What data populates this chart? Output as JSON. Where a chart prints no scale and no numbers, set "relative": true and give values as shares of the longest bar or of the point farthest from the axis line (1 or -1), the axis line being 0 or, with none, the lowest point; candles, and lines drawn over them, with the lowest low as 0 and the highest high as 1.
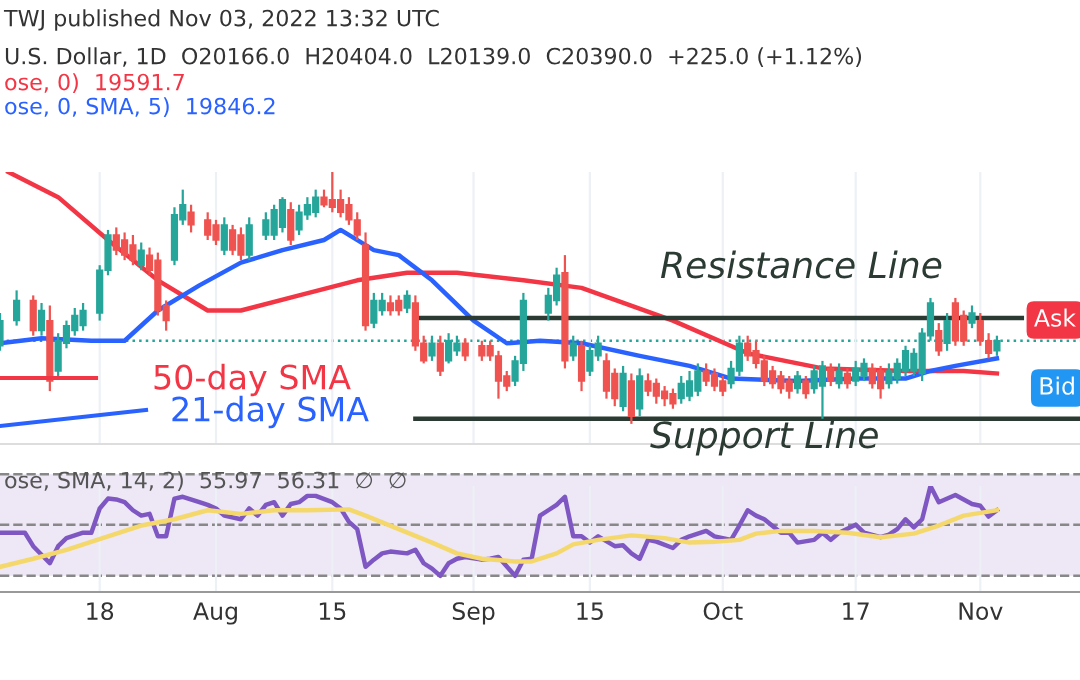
{
  "chart_data": [
    {
      "type": "candlestick",
      "relative": true,
      "tick_labels": false,
      "grid": "x",
      "xlim": [
        "2022-07-06",
        "2022-11-13"
      ],
      "xticks": [
        {
          "value": "2022-07-18",
          "label": null
        },
        {
          "value": "2022-08-01",
          "label": null
        },
        {
          "value": "2022-08-15",
          "label": null
        },
        {
          "value": "2022-09-01",
          "label": null
        },
        {
          "value": "2022-09-15",
          "label": null
        },
        {
          "value": "2022-10-01",
          "label": null
        },
        {
          "value": "2022-10-17",
          "label": null
        },
        {
          "value": "2022-11-01",
          "label": null
        }
      ],
      "x": [
        "2022-07-06",
        "2022-07-08",
        "2022-07-10",
        "2022-07-11",
        "2022-07-12",
        "2022-07-13",
        "2022-07-14",
        "2022-07-15",
        "2022-07-16",
        "2022-07-18",
        "2022-07-19",
        "2022-07-20",
        "2022-07-21",
        "2022-07-22",
        "2022-07-23",
        "2022-07-24",
        "2022-07-25",
        "2022-07-26",
        "2022-07-27",
        "2022-07-28",
        "2022-07-29",
        "2022-07-31",
        "2022-08-01",
        "2022-08-02",
        "2022-08-03",
        "2022-08-04",
        "2022-08-05",
        "2022-08-07",
        "2022-08-08",
        "2022-08-09",
        "2022-08-10",
        "2022-08-11",
        "2022-08-12",
        "2022-08-13",
        "2022-08-14",
        "2022-08-15",
        "2022-08-16",
        "2022-08-17",
        "2022-08-18",
        "2022-08-19",
        "2022-08-20",
        "2022-08-21",
        "2022-08-22",
        "2022-08-23",
        "2022-08-24",
        "2022-08-25",
        "2022-08-26",
        "2022-08-27",
        "2022-08-28",
        "2022-08-29",
        "2022-08-30",
        "2022-08-31",
        "2022-09-02",
        "2022-09-03",
        "2022-09-04",
        "2022-09-05",
        "2022-09-06",
        "2022-09-07",
        "2022-09-10",
        "2022-09-11",
        "2022-09-12",
        "2022-09-13",
        "2022-09-14",
        "2022-09-15",
        "2022-09-16",
        "2022-09-17",
        "2022-09-18",
        "2022-09-19",
        "2022-09-20",
        "2022-09-21",
        "2022-09-22",
        "2022-09-23",
        "2022-09-24",
        "2022-09-25",
        "2022-09-26",
        "2022-09-27",
        "2022-09-28",
        "2022-09-29",
        "2022-09-30",
        "2022-10-01",
        "2022-10-02",
        "2022-10-03",
        "2022-10-04",
        "2022-10-05",
        "2022-10-06",
        "2022-10-07",
        "2022-10-08",
        "2022-10-09",
        "2022-10-10",
        "2022-10-11",
        "2022-10-12",
        "2022-10-13",
        "2022-10-14",
        "2022-10-15",
        "2022-10-16",
        "2022-10-17",
        "2022-10-18",
        "2022-10-19",
        "2022-10-20",
        "2022-10-21",
        "2022-10-22",
        "2022-10-23",
        "2022-10-24",
        "2022-10-25",
        "2022-10-26",
        "2022-10-27",
        "2022-10-28",
        "2022-10-29",
        "2022-10-30",
        "2022-10-31",
        "2022-11-01",
        "2022-11-02",
        "2022-11-03"
      ],
      "ohlc": [
        [
          0.31,
          0.44,
          0.29,
          0.41
        ],
        [
          0.41,
          0.53,
          0.39,
          0.49
        ],
        [
          0.49,
          0.51,
          0.35,
          0.37
        ],
        [
          0.37,
          0.48,
          0.35,
          0.45
        ],
        [
          0.41,
          0.47,
          0.13,
          0.17
        ],
        [
          0.21,
          0.36,
          0.19,
          0.33
        ],
        [
          0.32,
          0.41,
          0.3,
          0.39
        ],
        [
          0.37,
          0.46,
          0.35,
          0.43
        ],
        [
          0.39,
          0.48,
          0.37,
          0.45
        ],
        [
          0.44,
          0.63,
          0.41,
          0.61
        ],
        [
          0.61,
          0.77,
          0.59,
          0.75
        ],
        [
          0.75,
          0.78,
          0.67,
          0.69
        ],
        [
          0.73,
          0.76,
          0.65,
          0.67
        ],
        [
          0.71,
          0.75,
          0.63,
          0.65
        ],
        [
          0.63,
          0.72,
          0.61,
          0.69
        ],
        [
          0.67,
          0.7,
          0.59,
          0.61
        ],
        [
          0.65,
          0.68,
          0.43,
          0.45
        ],
        [
          0.47,
          0.49,
          0.37,
          0.41
        ],
        [
          0.65,
          0.86,
          0.63,
          0.83
        ],
        [
          0.81,
          0.93,
          0.79,
          0.87
        ],
        [
          0.84,
          0.87,
          0.76,
          0.79
        ],
        [
          0.81,
          0.84,
          0.73,
          0.75
        ],
        [
          0.79,
          0.81,
          0.71,
          0.73
        ],
        [
          0.69,
          0.82,
          0.67,
          0.79
        ],
        [
          0.77,
          0.79,
          0.67,
          0.69
        ],
        [
          0.75,
          0.78,
          0.65,
          0.67
        ],
        [
          0.67,
          0.82,
          0.65,
          0.79
        ],
        [
          0.75,
          0.84,
          0.73,
          0.81
        ],
        [
          0.75,
          0.87,
          0.73,
          0.85
        ],
        [
          0.78,
          0.9,
          0.76,
          0.89
        ],
        [
          0.85,
          0.88,
          0.71,
          0.73
        ],
        [
          0.77,
          0.87,
          0.75,
          0.84
        ],
        [
          0.83,
          0.9,
          0.81,
          0.87
        ],
        [
          0.84,
          0.93,
          0.82,
          0.9
        ],
        [
          0.9,
          0.93,
          0.86,
          0.87
        ],
        [
          0.89,
          1.0,
          0.84,
          0.86
        ],
        [
          0.89,
          0.93,
          0.82,
          0.84
        ],
        [
          0.87,
          0.9,
          0.79,
          0.81
        ],
        [
          0.81,
          0.84,
          0.73,
          0.75
        ],
        [
          0.71,
          0.76,
          0.37,
          0.39
        ],
        [
          0.4,
          0.52,
          0.38,
          0.49
        ],
        [
          0.45,
          0.52,
          0.43,
          0.49
        ],
        [
          0.48,
          0.51,
          0.43,
          0.45
        ],
        [
          0.49,
          0.51,
          0.43,
          0.45
        ],
        [
          0.46,
          0.53,
          0.44,
          0.51
        ],
        [
          0.48,
          0.51,
          0.29,
          0.31
        ],
        [
          0.32,
          0.35,
          0.24,
          0.25
        ],
        [
          0.27,
          0.35,
          0.25,
          0.32
        ],
        [
          0.32,
          0.35,
          0.19,
          0.21
        ],
        [
          0.25,
          0.36,
          0.24,
          0.33
        ],
        [
          0.29,
          0.35,
          0.27,
          0.32
        ],
        [
          0.32,
          0.34,
          0.25,
          0.27
        ],
        [
          0.31,
          0.33,
          0.25,
          0.27
        ],
        [
          0.31,
          0.33,
          0.25,
          0.27
        ],
        [
          0.27,
          0.29,
          0.1,
          0.17
        ],
        [
          0.19,
          0.21,
          0.13,
          0.15
        ],
        [
          0.17,
          0.27,
          0.15,
          0.25
        ],
        [
          0.24,
          0.52,
          0.21,
          0.49
        ],
        [
          0.44,
          0.54,
          0.41,
          0.51
        ],
        [
          0.49,
          0.62,
          0.47,
          0.59
        ],
        [
          0.6,
          0.67,
          0.22,
          0.25
        ],
        [
          0.27,
          0.35,
          0.25,
          0.32
        ],
        [
          0.31,
          0.33,
          0.13,
          0.17
        ],
        [
          0.21,
          0.31,
          0.19,
          0.29
        ],
        [
          0.27,
          0.35,
          0.25,
          0.32
        ],
        [
          0.25,
          0.28,
          0.1,
          0.13
        ],
        [
          0.2,
          0.22,
          0.07,
          0.1
        ],
        [
          0.07,
          0.23,
          0.05,
          0.2
        ],
        [
          0.17,
          0.2,
          0.0,
          0.03
        ],
        [
          0.06,
          0.22,
          0.03,
          0.19
        ],
        [
          0.17,
          0.2,
          0.11,
          0.13
        ],
        [
          0.16,
          0.18,
          0.08,
          0.11
        ],
        [
          0.13,
          0.15,
          0.07,
          0.1
        ],
        [
          0.12,
          0.14,
          0.06,
          0.08
        ],
        [
          0.1,
          0.19,
          0.08,
          0.16
        ],
        [
          0.11,
          0.21,
          0.09,
          0.17
        ],
        [
          0.13,
          0.24,
          0.11,
          0.21
        ],
        [
          0.21,
          0.24,
          0.15,
          0.17
        ],
        [
          0.2,
          0.22,
          0.13,
          0.15
        ],
        [
          0.17,
          0.19,
          0.11,
          0.13
        ],
        [
          0.16,
          0.25,
          0.14,
          0.22
        ],
        [
          0.21,
          0.35,
          0.19,
          0.32
        ],
        [
          0.32,
          0.35,
          0.25,
          0.27
        ],
        [
          0.29,
          0.33,
          0.22,
          0.24
        ],
        [
          0.25,
          0.27,
          0.15,
          0.17
        ],
        [
          0.21,
          0.23,
          0.14,
          0.16
        ],
        [
          0.19,
          0.21,
          0.12,
          0.14
        ],
        [
          0.17,
          0.19,
          0.1,
          0.13
        ],
        [
          0.14,
          0.21,
          0.12,
          0.19
        ],
        [
          0.17,
          0.19,
          0.1,
          0.12
        ],
        [
          0.14,
          0.23,
          0.12,
          0.21
        ],
        [
          0.15,
          0.25,
          0.02,
          0.23
        ],
        [
          0.22,
          0.24,
          0.15,
          0.17
        ],
        [
          0.16,
          0.24,
          0.14,
          0.21
        ],
        [
          0.2,
          0.22,
          0.14,
          0.16
        ],
        [
          0.17,
          0.25,
          0.15,
          0.22
        ],
        [
          0.19,
          0.26,
          0.17,
          0.24
        ],
        [
          0.22,
          0.24,
          0.14,
          0.16
        ],
        [
          0.21,
          0.23,
          0.1,
          0.14
        ],
        [
          0.16,
          0.24,
          0.14,
          0.21
        ],
        [
          0.18,
          0.26,
          0.16,
          0.24
        ],
        [
          0.21,
          0.31,
          0.19,
          0.29
        ],
        [
          0.21,
          0.3,
          0.19,
          0.28
        ],
        [
          0.2,
          0.38,
          0.17,
          0.36
        ],
        [
          0.35,
          0.5,
          0.33,
          0.48
        ],
        [
          0.37,
          0.4,
          0.27,
          0.29
        ],
        [
          0.32,
          0.44,
          0.29,
          0.41
        ],
        [
          0.48,
          0.5,
          0.31,
          0.33
        ],
        [
          0.43,
          0.45,
          0.31,
          0.33
        ],
        [
          0.4,
          0.47,
          0.38,
          0.44
        ],
        [
          0.41,
          0.44,
          0.31,
          0.33
        ],
        [
          0.33,
          0.36,
          0.26,
          0.28
        ],
        [
          0.29,
          0.35,
          0.27,
          0.33
        ]
      ],
      "series": [
        {
          "type": "line",
          "name": "50-day SMA",
          "color": "#f23645",
          "x": [
            "2022-07-07",
            "2022-07-13",
            "2022-07-19",
            "2022-07-25",
            "2022-07-31",
            "2022-08-04",
            "2022-08-11",
            "2022-08-18",
            "2022-08-24",
            "2022-08-30",
            "2022-09-07",
            "2022-09-14",
            "2022-09-25",
            "2022-10-04",
            "2022-10-13",
            "2022-10-23",
            "2022-10-30",
            "2022-11-03"
          ],
          "values": [
            1.0,
            0.9,
            0.73,
            0.57,
            0.45,
            0.45,
            0.51,
            0.57,
            0.6,
            0.6,
            0.57,
            0.54,
            0.41,
            0.28,
            0.22,
            0.21,
            0.21,
            0.2
          ]
        },
        {
          "type": "line",
          "name": "21-day SMA",
          "color": "#2962ff",
          "x": [
            "2022-07-06",
            "2022-07-11",
            "2022-07-17",
            "2022-07-21",
            "2022-07-25",
            "2022-07-30",
            "2022-08-04",
            "2022-08-09",
            "2022-08-14",
            "2022-08-16",
            "2022-08-20",
            "2022-08-23",
            "2022-08-27",
            "2022-09-01",
            "2022-09-05",
            "2022-09-09",
            "2022-09-14",
            "2022-09-21",
            "2022-09-27",
            "2022-10-02",
            "2022-10-10",
            "2022-10-17",
            "2022-10-23",
            "2022-10-26",
            "2022-10-29",
            "2022-11-03"
          ],
          "values": [
            0.32,
            0.34,
            0.33,
            0.33,
            0.45,
            0.55,
            0.64,
            0.69,
            0.73,
            0.77,
            0.69,
            0.67,
            0.57,
            0.41,
            0.32,
            0.33,
            0.32,
            0.27,
            0.23,
            0.18,
            0.17,
            0.18,
            0.18,
            0.21,
            0.23,
            0.26
          ]
        },
        {
          "type": "line",
          "name": "Resistance Line",
          "color": "#2b3a33",
          "x": [
            "2022-08-25",
            "2022-11-06"
          ],
          "values": [
            0.42,
            0.42
          ]
        },
        {
          "type": "line",
          "name": "Support Line",
          "color": "#2b3a33",
          "x": [
            "2022-08-25",
            "2022-11-13"
          ],
          "values": [
            0.02,
            0.02
          ]
        }
      ],
      "ref_lines": [
        {
          "axis": "y",
          "value": 0.33,
          "color": "#26a69a",
          "line_style": "dotted"
        }
      ],
      "legend": "bottom left",
      "annotations": [
        "TWJ published Nov 03, 2022 13:32 UTC",
        "U.S. Dollar, 1D  O20166.0  H20404.0  L20139.0  C20390.0  +225.0 (+1.12%)",
        "ose, 0)  19591.7",
        "ose, 0, SMA, 5)  19846.2",
        "Ask",
        "Bid"
      ]
    },
    {
      "type": "line",
      "relative": true,
      "tick_labels": "x",
      "grid": "x",
      "xlim": [
        "2022-07-06",
        "2022-11-13"
      ],
      "xticks": [
        {
          "value": "2022-07-18",
          "label": "18"
        },
        {
          "value": "2022-08-01",
          "label": "Aug"
        },
        {
          "value": "2022-08-15",
          "label": "15"
        },
        {
          "value": "2022-09-01",
          "label": "Sep"
        },
        {
          "value": "2022-09-15",
          "label": "15"
        },
        {
          "value": "2022-10-01",
          "label": "Oct"
        },
        {
          "value": "2022-10-17",
          "label": "17"
        },
        {
          "value": "2022-11-01",
          "label": "Nov"
        }
      ],
      "series": [
        {
          "color": "#7e57c2",
          "x": [
            "2022-07-06",
            "2022-07-07",
            "2022-07-09",
            "2022-07-10",
            "2022-07-12",
            "2022-07-13",
            "2022-07-14",
            "2022-07-16",
            "2022-07-17",
            "2022-07-18",
            "2022-07-19",
            "2022-07-20",
            "2022-07-21",
            "2022-07-22",
            "2022-07-23",
            "2022-07-24",
            "2022-07-25",
            "2022-07-26",
            "2022-07-27",
            "2022-07-28",
            "2022-07-30",
            "2022-07-31",
            "2022-08-01",
            "2022-08-02",
            "2022-08-04",
            "2022-08-05",
            "2022-08-06",
            "2022-08-07",
            "2022-08-08",
            "2022-08-09",
            "2022-08-10",
            "2022-08-11",
            "2022-08-12",
            "2022-08-13",
            "2022-08-15",
            "2022-08-16",
            "2022-08-17",
            "2022-08-18",
            "2022-08-19",
            "2022-08-20",
            "2022-08-21",
            "2022-08-22",
            "2022-08-24",
            "2022-08-25",
            "2022-08-26",
            "2022-08-27",
            "2022-08-28",
            "2022-08-29",
            "2022-08-30",
            "2022-08-31",
            "2022-09-02",
            "2022-09-03",
            "2022-09-04",
            "2022-09-06",
            "2022-09-07",
            "2022-09-08",
            "2022-09-09",
            "2022-09-10",
            "2022-09-11",
            "2022-09-12",
            "2022-09-13",
            "2022-09-14",
            "2022-09-15",
            "2022-09-16",
            "2022-09-18",
            "2022-09-19",
            "2022-09-20",
            "2022-09-21",
            "2022-09-22",
            "2022-09-23",
            "2022-09-25",
            "2022-09-26",
            "2022-09-27",
            "2022-09-29",
            "2022-09-30",
            "2022-10-02",
            "2022-10-03",
            "2022-10-04",
            "2022-10-05",
            "2022-10-06",
            "2022-10-08",
            "2022-10-09",
            "2022-10-10",
            "2022-10-12",
            "2022-10-13",
            "2022-10-14",
            "2022-10-15",
            "2022-10-17",
            "2022-10-18",
            "2022-10-20",
            "2022-10-21",
            "2022-10-22",
            "2022-10-23",
            "2022-10-24",
            "2022-10-25",
            "2022-10-26",
            "2022-10-27",
            "2022-10-29",
            "2022-10-30",
            "2022-10-31",
            "2022-11-01",
            "2022-11-02",
            "2022-11-03"
          ],
          "values": [
            0.48,
            0.48,
            0.48,
            0.33,
            0.14,
            0.33,
            0.42,
            0.48,
            0.48,
            0.75,
            0.86,
            0.85,
            0.82,
            0.73,
            0.67,
            0.69,
            0.44,
            0.44,
            0.86,
            0.88,
            0.82,
            0.79,
            0.75,
            0.67,
            0.63,
            0.75,
            0.67,
            0.79,
            0.82,
            0.67,
            0.8,
            0.82,
            0.89,
            0.89,
            0.82,
            0.75,
            0.6,
            0.52,
            0.1,
            0.18,
            0.25,
            0.27,
            0.25,
            0.29,
            0.14,
            0.08,
            0.0,
            0.14,
            0.19,
            0.21,
            0.18,
            0.19,
            0.21,
            0.0,
            0.18,
            0.19,
            0.67,
            0.73,
            0.79,
            0.88,
            0.44,
            0.44,
            0.37,
            0.44,
            0.33,
            0.34,
            0.25,
            0.19,
            0.4,
            0.38,
            0.31,
            0.4,
            0.44,
            0.5,
            0.44,
            0.4,
            0.56,
            0.73,
            0.67,
            0.63,
            0.48,
            0.48,
            0.37,
            0.4,
            0.48,
            0.4,
            0.48,
            0.57,
            0.48,
            0.43,
            0.46,
            0.52,
            0.63,
            0.54,
            0.63,
            1.0,
            0.82,
            0.9,
            0.85,
            0.8,
            0.78,
            0.66,
            0.73
          ]
        },
        {
          "color": "#f5d86b",
          "x": [
            "2022-07-06",
            "2022-07-10",
            "2022-07-14",
            "2022-07-19",
            "2022-07-23",
            "2022-07-27",
            "2022-07-31",
            "2022-08-04",
            "2022-08-08",
            "2022-08-12",
            "2022-08-17",
            "2022-08-19",
            "2022-08-23",
            "2022-08-27",
            "2022-08-30",
            "2022-09-02",
            "2022-09-06",
            "2022-09-08",
            "2022-09-11",
            "2022-09-13",
            "2022-09-16",
            "2022-09-20",
            "2022-09-24",
            "2022-09-27",
            "2022-09-30",
            "2022-10-03",
            "2022-10-05",
            "2022-10-08",
            "2022-10-12",
            "2022-10-16",
            "2022-10-20",
            "2022-10-24",
            "2022-10-27",
            "2022-10-30",
            "2022-11-03"
          ],
          "values": [
            0.1,
            0.19,
            0.29,
            0.44,
            0.56,
            0.63,
            0.73,
            0.69,
            0.73,
            0.73,
            0.74,
            0.67,
            0.52,
            0.37,
            0.25,
            0.19,
            0.16,
            0.16,
            0.25,
            0.35,
            0.4,
            0.45,
            0.42,
            0.37,
            0.38,
            0.4,
            0.47,
            0.5,
            0.5,
            0.48,
            0.43,
            0.47,
            0.56,
            0.67,
            0.73
          ]
        }
      ],
      "bands": [
        {
          "axis": "y",
          "from": 0,
          "to": 1.13,
          "color": "#ede7f6"
        }
      ],
      "ref_lines": [
        {
          "axis": "y",
          "value": 1.13,
          "color": "#888888",
          "line_style": "dashed"
        },
        {
          "axis": "y",
          "value": 0.57,
          "color": "#888888",
          "line_style": "dashed"
        },
        {
          "axis": "y",
          "value": 0,
          "color": "#888888",
          "line_style": "dashed"
        }
      ],
      "annotations": [
        "ose, SMA, 14, 2)  55.97  56.31  ∅  ∅"
      ]
    }
  ]
}
